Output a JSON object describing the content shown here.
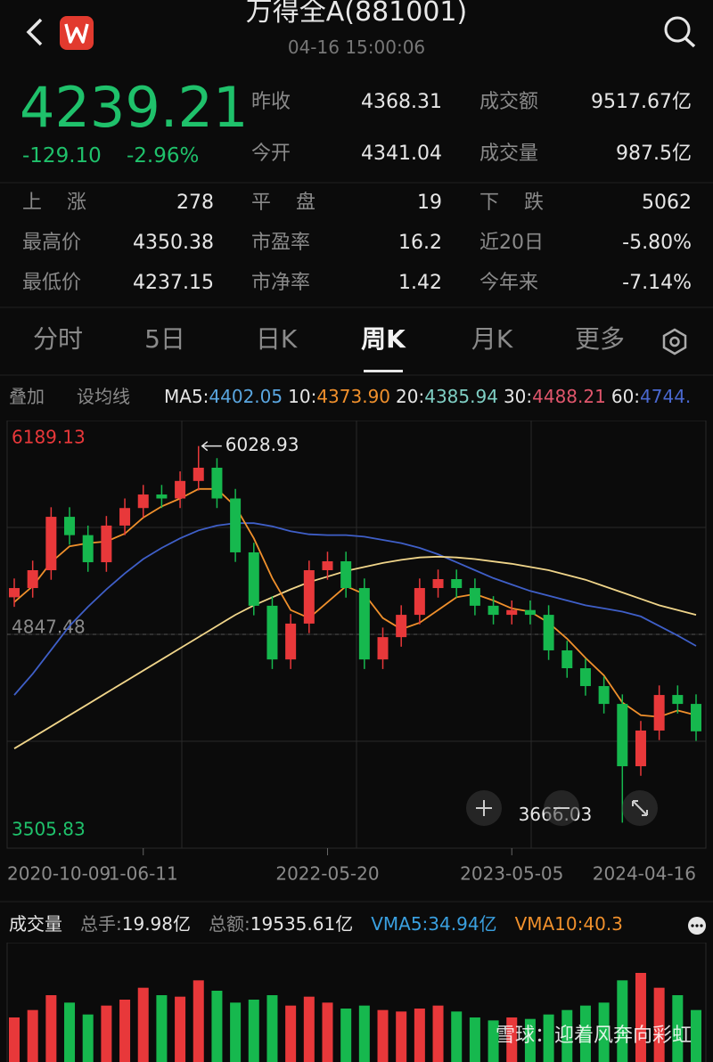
{
  "header": {
    "title": "万得全A(881001)",
    "time": "04-16 15:00:06"
  },
  "quote": {
    "price": "4239.21",
    "change": "-129.10",
    "change_pct": "-2.96%",
    "fields": [
      {
        "label": "昨收",
        "value": "4368.31"
      },
      {
        "label": "成交额",
        "value": "9517.67亿"
      },
      {
        "label": "今开",
        "value": "4341.04"
      },
      {
        "label": "成交量",
        "value": "987.5亿"
      }
    ]
  },
  "stats": [
    [
      {
        "label": "上涨",
        "value": "278"
      },
      {
        "label": "平盘",
        "value": "19"
      },
      {
        "label": "下跌",
        "value": "5062"
      }
    ],
    [
      {
        "label": "最高价",
        "value": "4350.38"
      },
      {
        "label": "市盈率",
        "value": "16.2"
      },
      {
        "label": "近20日",
        "value": "-5.80%"
      }
    ],
    [
      {
        "label": "最低价",
        "value": "4237.15"
      },
      {
        "label": "市净率",
        "value": "1.42"
      },
      {
        "label": "今年来",
        "value": "-7.14%"
      }
    ]
  ],
  "tabs": [
    "分时",
    "5日",
    "日K",
    "周K",
    "月K",
    "更多"
  ],
  "ma_row": {
    "buttons": [
      "叠加",
      "设均线"
    ],
    "items": [
      {
        "label": "MA5:",
        "value": "4402.05",
        "color": "#5aa6e0"
      },
      {
        "label": "10:",
        "value": "4373.90",
        "color": "#f0902c"
      },
      {
        "label": "20:",
        "value": "4385.94",
        "color": "#7fcfc4"
      },
      {
        "label": "30:",
        "value": "4488.21",
        "color": "#e0566c"
      },
      {
        "label": "60:",
        "value": "4744.",
        "color": "#4a68d0"
      }
    ]
  },
  "chart_data": [
    {
      "type": "candlestick",
      "candles": [
        [
          5080,
          5198,
          5020,
          5138
        ],
        [
          5138,
          5310,
          5078,
          5250
        ],
        [
          5250,
          5645,
          5190,
          5585
        ],
        [
          5585,
          5645,
          5410,
          5470
        ],
        [
          5470,
          5530,
          5240,
          5300
        ],
        [
          5300,
          5590,
          5240,
          5530
        ],
        [
          5530,
          5700,
          5470,
          5640
        ],
        [
          5640,
          5785,
          5580,
          5725
        ],
        [
          5725,
          5785,
          5640,
          5700
        ],
        [
          5700,
          5870,
          5640,
          5810
        ],
        [
          5810,
          6028.93,
          5750,
          5893
        ],
        [
          5893,
          5953,
          5640,
          5700
        ],
        [
          5700,
          5760,
          5302,
          5362
        ],
        [
          5362,
          5422,
          4967,
          5027
        ],
        [
          5027,
          5087,
          4630,
          4690
        ],
        [
          4690,
          4975,
          4630,
          4915
        ],
        [
          4915,
          5310,
          4855,
          5250
        ],
        [
          5250,
          5366,
          5190,
          5306
        ],
        [
          5306,
          5366,
          5078,
          5138
        ],
        [
          5138,
          5198,
          4630,
          4690
        ],
        [
          4690,
          4890,
          4630,
          4830
        ],
        [
          4830,
          5030,
          4770,
          4970
        ],
        [
          4970,
          5198,
          4910,
          5138
        ],
        [
          5138,
          5254,
          5078,
          5194
        ],
        [
          5194,
          5254,
          5078,
          5138
        ],
        [
          5138,
          5198,
          4967,
          5027
        ],
        [
          5027,
          5087,
          4910,
          4970
        ],
        [
          4970,
          5060,
          4910,
          5000
        ],
        [
          5000,
          5060,
          4910,
          4970
        ],
        [
          4970,
          5030,
          4687,
          4747
        ],
        [
          4747,
          4807,
          4575,
          4635
        ],
        [
          4635,
          4695,
          4463,
          4523
        ],
        [
          4523,
          4583,
          4351,
          4411
        ],
        [
          4411,
          4471,
          3666.03,
          4020
        ],
        [
          4020,
          4304,
          3960,
          4244
        ],
        [
          4244,
          4527,
          4184,
          4467
        ],
        [
          4467,
          4527,
          4351,
          4411
        ],
        [
          4411,
          4471,
          4179,
          4239.21
        ]
      ],
      "categories": [
        "2020-10-09",
        null,
        null,
        null,
        null,
        null,
        null,
        "1-06-11",
        null,
        null,
        null,
        null,
        null,
        null,
        null,
        null,
        null,
        "2022-05-20",
        null,
        null,
        null,
        null,
        null,
        null,
        null,
        null,
        null,
        "2023-05-05",
        null,
        null,
        null,
        null,
        null,
        null,
        null,
        null,
        null,
        "2024-04-16"
      ],
      "up_color": "#e8383a",
      "down_color": "#16b84e",
      "series": [
        {
          "color": "#3f5fc8",
          "values": [
            4467,
            4600,
            4750,
            4900,
            5020,
            5130,
            5230,
            5320,
            5390,
            5450,
            5500,
            5530,
            5545,
            5545,
            5525,
            5495,
            5475,
            5470,
            5470,
            5460,
            5440,
            5420,
            5390,
            5350,
            5300,
            5250,
            5200,
            5160,
            5120,
            5090,
            5060,
            5030,
            5010,
            4990,
            4960,
            4900,
            4840,
            4775
          ]
        },
        {
          "color": "#f0d58a",
          "values": [
            4131,
            4200,
            4270,
            4340,
            4410,
            4480,
            4550,
            4620,
            4690,
            4760,
            4830,
            4900,
            4970,
            5030,
            5080,
            5130,
            5175,
            5210,
            5245,
            5270,
            5295,
            5315,
            5330,
            5335,
            5330,
            5320,
            5305,
            5290,
            5270,
            5250,
            5220,
            5190,
            5150,
            5110,
            5070,
            5030,
            5000,
            4970
          ]
        },
        {
          "color": "#f0902c",
          "values": [
            5050,
            5150,
            5300,
            5400,
            5420,
            5430,
            5480,
            5580,
            5650,
            5700,
            5760,
            5760,
            5650,
            5450,
            5200,
            5000,
            4950,
            5050,
            5150,
            5100,
            4950,
            4880,
            4920,
            5000,
            5080,
            5100,
            5060,
            5010,
            4990,
            4920,
            4820,
            4700,
            4590,
            4420,
            4340,
            4330,
            4370,
            4340
          ]
        }
      ],
      "ylim": [
        3505.83,
        6189.13
      ],
      "yticks": [
        3505.83,
        4847.48,
        6189.13
      ],
      "ytick_colors": [
        "#1fc16b",
        "#8a8a8a",
        "#e8383a"
      ],
      "annotations": [
        {
          "text": "6028.93",
          "candle": 10,
          "at": "high"
        },
        {
          "text": "3666.03",
          "candle": 33,
          "at": "low"
        }
      ]
    },
    {
      "type": "bar",
      "values": [
        30,
        35,
        45,
        40,
        32,
        38,
        42,
        50,
        45,
        44,
        55,
        48,
        40,
        42,
        45,
        38,
        44,
        40,
        36,
        38,
        35,
        34,
        36,
        38,
        34,
        30,
        28,
        30,
        29,
        32,
        35,
        38,
        40,
        55,
        60,
        50,
        45,
        35
      ]
    }
  ],
  "volume_header": {
    "title": "成交量",
    "items": [
      {
        "label": "总手:",
        "value": "19.98亿",
        "color": "#e6e6e6"
      },
      {
        "label": "总额:",
        "value": "19535.61亿",
        "color": "#e6e6e6"
      },
      {
        "label": "VMA5:",
        "value": "34.94亿",
        "color": "#3aa0e0"
      },
      {
        "label": "VMA10:",
        "value": "40.3",
        "color": "#f0902c"
      }
    ]
  },
  "watermark": "雪球：迎着风奔向彩虹"
}
